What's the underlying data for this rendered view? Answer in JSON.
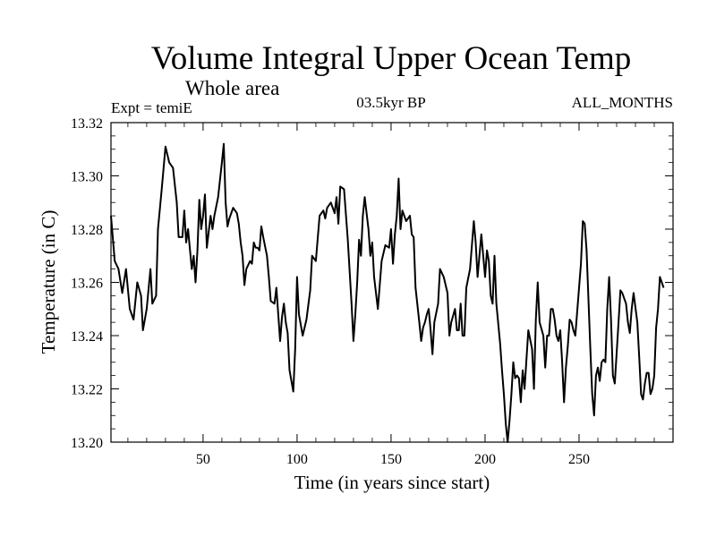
{
  "chart_data": {
    "type": "line",
    "title": "Volume Integral Upper Ocean Temp",
    "subtitle": "Whole area",
    "left_label": "Expt = temiE",
    "center_label": "03.5kyr BP",
    "right_label": "ALL_MONTHS",
    "xlabel": "Time (in years since start)",
    "ylabel": "Temperature (in C)",
    "xlim": [
      1,
      300
    ],
    "ylim": [
      13.2,
      13.32
    ],
    "x_ticks": [
      {
        "value": 50,
        "label": "50"
      },
      {
        "value": 100,
        "label": "100"
      },
      {
        "value": 150,
        "label": "150"
      },
      {
        "value": 200,
        "label": "200"
      },
      {
        "value": 250,
        "label": "250"
      }
    ],
    "y_ticks": [
      {
        "value": 13.2,
        "label": "13.20"
      },
      {
        "value": 13.22,
        "label": "13.22"
      },
      {
        "value": 13.24,
        "label": "13.24"
      },
      {
        "value": 13.26,
        "label": "13.26"
      },
      {
        "value": 13.28,
        "label": "13.28"
      },
      {
        "value": 13.3,
        "label": "13.30"
      },
      {
        "value": 13.32,
        "label": "13.32"
      }
    ],
    "grid": false,
    "line_color": "#000000",
    "series": [
      {
        "name": "temperature",
        "points": [
          [
            1,
            13.285
          ],
          [
            3,
            13.268
          ],
          [
            5,
            13.265
          ],
          [
            7,
            13.256
          ],
          [
            9,
            13.265
          ],
          [
            11,
            13.25
          ],
          [
            13,
            13.246
          ],
          [
            15,
            13.26
          ],
          [
            17,
            13.255
          ],
          [
            18,
            13.242
          ],
          [
            20,
            13.25
          ],
          [
            22,
            13.265
          ],
          [
            23,
            13.252
          ],
          [
            25,
            13.255
          ],
          [
            26,
            13.28
          ],
          [
            28,
            13.295
          ],
          [
            30,
            13.311
          ],
          [
            32,
            13.305
          ],
          [
            34,
            13.303
          ],
          [
            36,
            13.29
          ],
          [
            37,
            13.277
          ],
          [
            39,
            13.277
          ],
          [
            40,
            13.287
          ],
          [
            41,
            13.275
          ],
          [
            42,
            13.28
          ],
          [
            44,
            13.265
          ],
          [
            45,
            13.27
          ],
          [
            46,
            13.26
          ],
          [
            47,
            13.272
          ],
          [
            48,
            13.291
          ],
          [
            49,
            13.28
          ],
          [
            50,
            13.285
          ],
          [
            51,
            13.293
          ],
          [
            52,
            13.273
          ],
          [
            54,
            13.285
          ],
          [
            55,
            13.28
          ],
          [
            56,
            13.285
          ],
          [
            58,
            13.292
          ],
          [
            60,
            13.305
          ],
          [
            61,
            13.312
          ],
          [
            62,
            13.29
          ],
          [
            63,
            13.281
          ],
          [
            64,
            13.284
          ],
          [
            66,
            13.288
          ],
          [
            68,
            13.286
          ],
          [
            69,
            13.282
          ],
          [
            70,
            13.275
          ],
          [
            71,
            13.27
          ],
          [
            72,
            13.259
          ],
          [
            73,
            13.265
          ],
          [
            75,
            13.268
          ],
          [
            76,
            13.267
          ],
          [
            77,
            13.275
          ],
          [
            78,
            13.273
          ],
          [
            79,
            13.273
          ],
          [
            80,
            13.272
          ],
          [
            81,
            13.281
          ],
          [
            82,
            13.277
          ],
          [
            84,
            13.27
          ],
          [
            85,
            13.262
          ],
          [
            86,
            13.253
          ],
          [
            88,
            13.252
          ],
          [
            89,
            13.258
          ],
          [
            90,
            13.248
          ],
          [
            91,
            13.238
          ],
          [
            92,
            13.247
          ],
          [
            93,
            13.252
          ],
          [
            94,
            13.245
          ],
          [
            95,
            13.241
          ],
          [
            96,
            13.227
          ],
          [
            98,
            13.219
          ],
          [
            99,
            13.235
          ],
          [
            100,
            13.262
          ],
          [
            101,
            13.248
          ],
          [
            103,
            13.24
          ],
          [
            105,
            13.246
          ],
          [
            107,
            13.257
          ],
          [
            108,
            13.27
          ],
          [
            110,
            13.268
          ],
          [
            112,
            13.285
          ],
          [
            114,
            13.287
          ],
          [
            115,
            13.284
          ],
          [
            116,
            13.288
          ],
          [
            118,
            13.29
          ],
          [
            120,
            13.286
          ],
          [
            121,
            13.292
          ],
          [
            122,
            13.282
          ],
          [
            123,
            13.296
          ],
          [
            125,
            13.295
          ],
          [
            127,
            13.276
          ],
          [
            129,
            13.252
          ],
          [
            130,
            13.238
          ],
          [
            131,
            13.248
          ],
          [
            132,
            13.26
          ],
          [
            133,
            13.276
          ],
          [
            134,
            13.27
          ],
          [
            135,
            13.285
          ],
          [
            136,
            13.292
          ],
          [
            138,
            13.28
          ],
          [
            139,
            13.27
          ],
          [
            140,
            13.275
          ],
          [
            141,
            13.262
          ],
          [
            143,
            13.25
          ],
          [
            145,
            13.268
          ],
          [
            147,
            13.274
          ],
          [
            149,
            13.273
          ],
          [
            150,
            13.28
          ],
          [
            151,
            13.267
          ],
          [
            152,
            13.278
          ],
          [
            153,
            13.285
          ],
          [
            154,
            13.299
          ],
          [
            155,
            13.28
          ],
          [
            156,
            13.287
          ],
          [
            158,
            13.283
          ],
          [
            160,
            13.285
          ],
          [
            161,
            13.278
          ],
          [
            162,
            13.277
          ],
          [
            163,
            13.258
          ],
          [
            165,
            13.245
          ],
          [
            166,
            13.238
          ],
          [
            167,
            13.243
          ],
          [
            168,
            13.245
          ],
          [
            169,
            13.248
          ],
          [
            170,
            13.25
          ],
          [
            171,
            13.242
          ],
          [
            172,
            13.233
          ],
          [
            173,
            13.245
          ],
          [
            175,
            13.252
          ],
          [
            176,
            13.265
          ],
          [
            178,
            13.262
          ],
          [
            180,
            13.256
          ],
          [
            181,
            13.24
          ],
          [
            182,
            13.245
          ],
          [
            184,
            13.25
          ],
          [
            185,
            13.242
          ],
          [
            186,
            13.242
          ],
          [
            187,
            13.252
          ],
          [
            188,
            13.24
          ],
          [
            189,
            13.24
          ],
          [
            190,
            13.258
          ],
          [
            192,
            13.265
          ],
          [
            194,
            13.283
          ],
          [
            195,
            13.275
          ],
          [
            196,
            13.262
          ],
          [
            198,
            13.278
          ],
          [
            200,
            13.262
          ],
          [
            201,
            13.272
          ],
          [
            202,
            13.268
          ],
          [
            203,
            13.255
          ],
          [
            204,
            13.252
          ],
          [
            205,
            13.27
          ],
          [
            206,
            13.252
          ],
          [
            208,
            13.237
          ],
          [
            209,
            13.227
          ],
          [
            210,
            13.218
          ],
          [
            211,
            13.207
          ],
          [
            212,
            13.2
          ],
          [
            213,
            13.208
          ],
          [
            214,
            13.218
          ],
          [
            215,
            13.23
          ],
          [
            216,
            13.224
          ],
          [
            217,
            13.225
          ],
          [
            218,
            13.224
          ],
          [
            219,
            13.215
          ],
          [
            220,
            13.227
          ],
          [
            221,
            13.22
          ],
          [
            223,
            13.242
          ],
          [
            225,
            13.235
          ],
          [
            226,
            13.22
          ],
          [
            227,
            13.246
          ],
          [
            228,
            13.26
          ],
          [
            229,
            13.245
          ],
          [
            231,
            13.24
          ],
          [
            232,
            13.228
          ],
          [
            233,
            13.24
          ],
          [
            234,
            13.24
          ],
          [
            235,
            13.25
          ],
          [
            236,
            13.25
          ],
          [
            237,
            13.246
          ],
          [
            238,
            13.24
          ],
          [
            239,
            13.238
          ],
          [
            240,
            13.242
          ],
          [
            241,
            13.23
          ],
          [
            242,
            13.215
          ],
          [
            243,
            13.228
          ],
          [
            244,
            13.236
          ],
          [
            245,
            13.246
          ],
          [
            246,
            13.245
          ],
          [
            247,
            13.242
          ],
          [
            248,
            13.24
          ],
          [
            250,
            13.258
          ],
          [
            251,
            13.267
          ],
          [
            252,
            13.283
          ],
          [
            253,
            13.282
          ],
          [
            254,
            13.272
          ],
          [
            256,
            13.235
          ],
          [
            257,
            13.218
          ],
          [
            258,
            13.21
          ],
          [
            259,
            13.225
          ],
          [
            260,
            13.228
          ],
          [
            261,
            13.223
          ],
          [
            262,
            13.23
          ],
          [
            263,
            13.231
          ],
          [
            264,
            13.23
          ],
          [
            265,
            13.25
          ],
          [
            266,
            13.262
          ],
          [
            267,
            13.246
          ],
          [
            268,
            13.225
          ],
          [
            269,
            13.222
          ],
          [
            271,
            13.245
          ],
          [
            272,
            13.257
          ],
          [
            273,
            13.256
          ],
          [
            275,
            13.252
          ],
          [
            276,
            13.245
          ],
          [
            277,
            13.241
          ],
          [
            278,
            13.25
          ],
          [
            279,
            13.256
          ],
          [
            281,
            13.245
          ],
          [
            282,
            13.232
          ],
          [
            283,
            13.218
          ],
          [
            284,
            13.216
          ],
          [
            285,
            13.222
          ],
          [
            286,
            13.226
          ],
          [
            287,
            13.226
          ],
          [
            288,
            13.218
          ],
          [
            289,
            13.22
          ],
          [
            290,
            13.225
          ],
          [
            291,
            13.243
          ],
          [
            292,
            13.25
          ],
          [
            293,
            13.262
          ],
          [
            294,
            13.26
          ],
          [
            295,
            13.258
          ]
        ]
      }
    ]
  }
}
